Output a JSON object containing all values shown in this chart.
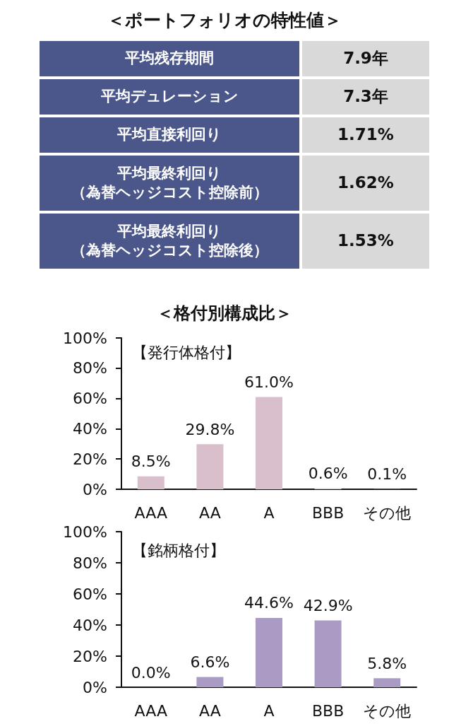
{
  "chart_data": [
    {
      "type": "other",
      "title": "＜ポートフォリオの特性値＞",
      "annotations": [
        "平均残存期間",
        "7.9年",
        "平均デュレーション",
        "7.3年",
        "平均直接利回り",
        "1.71%",
        "平均最終利回り（為替ヘッジコスト控除前）",
        "1.62%",
        "平均最終利回り（為替ヘッジコスト控除後）",
        "1.53%"
      ]
    },
    {
      "type": "bar",
      "title": "＜格付別構成比＞",
      "subtitle": "【発行体格付】",
      "categories": [
        "AAA",
        "AA",
        "A",
        "BBB",
        "その他"
      ],
      "values": [
        8.5,
        29.8,
        61.0,
        0.6,
        0.1
      ],
      "value_labels": [
        "8.5%",
        "29.8%",
        "61.0%",
        "0.6%",
        "0.1%"
      ],
      "color": "#d9bfcc",
      "ylim": [
        0,
        100
      ],
      "yticks": [
        {
          "value": 0,
          "label": "0%"
        },
        {
          "value": 20,
          "label": "20%"
        },
        {
          "value": 40,
          "label": "40%"
        },
        {
          "value": 60,
          "label": "60%"
        },
        {
          "value": 80,
          "label": "80%"
        },
        {
          "value": 100,
          "label": "100%"
        }
      ]
    },
    {
      "type": "bar",
      "title": "【銘柄格付】",
      "categories": [
        "AAA",
        "AA",
        "A",
        "BBB",
        "その他"
      ],
      "values": [
        0.0,
        6.6,
        44.6,
        42.9,
        5.8
      ],
      "value_labels": [
        "0.0%",
        "6.6%",
        "44.6%",
        "42.9%",
        "5.8%"
      ],
      "color": "#a99bc4",
      "ylim": [
        0,
        100
      ],
      "yticks": [
        {
          "value": 0,
          "label": "0%"
        },
        {
          "value": 20,
          "label": "20%"
        },
        {
          "value": 40,
          "label": "40%"
        },
        {
          "value": 60,
          "label": "60%"
        },
        {
          "value": 80,
          "label": "80%"
        },
        {
          "value": 100,
          "label": "100%"
        }
      ]
    }
  ]
}
